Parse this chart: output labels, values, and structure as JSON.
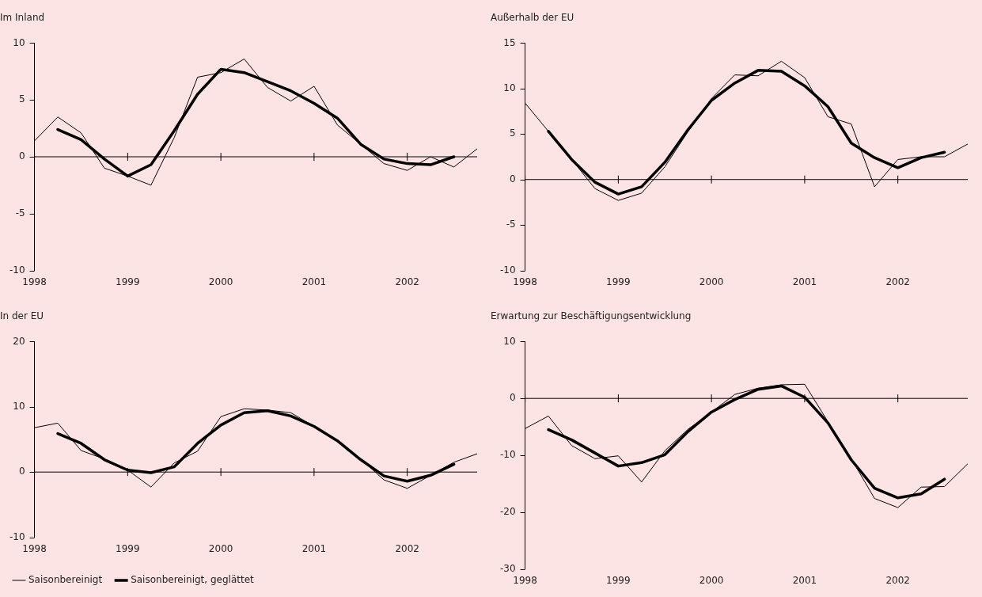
{
  "chart_data": [
    {
      "type": "line",
      "title": "Im Inland",
      "xlim": [
        1998,
        2002.75
      ],
      "xticks": [
        1998,
        1999,
        2000,
        2001,
        2002
      ],
      "ylim": [
        -10,
        10
      ],
      "yticks": [
        -10,
        -5,
        0,
        5,
        10
      ],
      "ref_lines": [
        {
          "axis": "y",
          "value": 0
        }
      ],
      "grid": false,
      "legend": false,
      "marker": "none",
      "line_style": "solid",
      "series": [
        {
          "color": "#000000",
          "x": [
            1998,
            1998.25,
            1998.5,
            1998.75,
            1999,
            1999.25,
            1999.5,
            1999.75,
            2000,
            2000.25,
            2000.5,
            2000.75,
            2001,
            2001.25,
            2001.5,
            2001.75,
            2002,
            2002.25,
            2002.5,
            2002.75
          ],
          "values": [
            1.4,
            3.5,
            2.1,
            -1.0,
            -1.7,
            -2.5,
            1.7,
            7.0,
            7.4,
            8.6,
            6.1,
            4.9,
            6.2,
            2.8,
            1.1,
            -0.6,
            -1.2,
            0.0,
            -0.9,
            0.7
          ]
        },
        {
          "color": "#000000",
          "x": [
            1998.25,
            1998.5,
            1998.75,
            1999,
            1999.25,
            1999.5,
            1999.75,
            2000,
            2000.25,
            2000.5,
            2000.75,
            2001,
            2001.25,
            2001.5,
            2001.75,
            2002,
            2002.25,
            2002.5
          ],
          "values": [
            2.4,
            1.5,
            -0.2,
            -1.7,
            -0.7,
            2.3,
            5.5,
            7.7,
            7.4,
            6.6,
            5.8,
            4.7,
            3.4,
            1.1,
            -0.2,
            -0.6,
            -0.7,
            0.0
          ]
        }
      ]
    },
    {
      "type": "line",
      "title": "Außerhalb der EU",
      "xlim": [
        1998,
        2002.75
      ],
      "xticks": [
        1998,
        1999,
        2000,
        2001,
        2002
      ],
      "ylim": [
        -10,
        15
      ],
      "yticks": [
        -10,
        -5,
        0,
        5,
        10,
        15
      ],
      "ref_lines": [
        {
          "axis": "y",
          "value": 0
        }
      ],
      "grid": false,
      "legend": false,
      "marker": "none",
      "line_style": "solid",
      "series": [
        {
          "color": "#000000",
          "x": [
            1998,
            1998.25,
            1998.5,
            1998.75,
            1999,
            1999.25,
            1999.5,
            1999.75,
            2000,
            2000.25,
            2000.5,
            2000.75,
            2001,
            2001.25,
            2001.5,
            2001.75,
            2002,
            2002.25,
            2002.5,
            2002.75
          ],
          "values": [
            8.4,
            5.3,
            2.2,
            -1.0,
            -2.3,
            -1.5,
            1.4,
            5.3,
            8.9,
            11.5,
            11.4,
            13.0,
            11.2,
            6.9,
            6.1,
            -0.8,
            2.2,
            2.5,
            2.5,
            3.9
          ]
        },
        {
          "color": "#000000",
          "x": [
            1998.25,
            1998.5,
            1998.75,
            1999,
            1999.25,
            1999.5,
            1999.75,
            2000,
            2000.25,
            2000.5,
            2000.75,
            2001,
            2001.25,
            2001.5,
            2001.75,
            2002,
            2002.25,
            2002.5
          ],
          "values": [
            5.3,
            2.2,
            -0.3,
            -1.6,
            -0.8,
            1.9,
            5.5,
            8.7,
            10.6,
            12.0,
            11.9,
            10.3,
            8.0,
            4.0,
            2.4,
            1.3,
            2.4,
            3.0
          ]
        }
      ]
    },
    {
      "type": "line",
      "title": "In der EU",
      "xlim": [
        1998,
        2002.75
      ],
      "xticks": [
        1998,
        1999,
        2000,
        2001,
        2002
      ],
      "ylim": [
        -10,
        20
      ],
      "yticks": [
        -10,
        0,
        10,
        20
      ],
      "ref_lines": [
        {
          "axis": "y",
          "value": 0
        }
      ],
      "grid": false,
      "legend": "bottom",
      "marker": "none",
      "line_style": "solid",
      "series": [
        {
          "name": "Saisonbereinigt",
          "color": "#000000",
          "x": [
            1998,
            1998.25,
            1998.5,
            1998.75,
            1999,
            1999.25,
            1999.5,
            1999.75,
            2000,
            2000.25,
            2000.5,
            2000.75,
            2001,
            2001.25,
            2001.5,
            2001.75,
            2002,
            2002.25,
            2002.5,
            2002.75
          ],
          "values": [
            6.8,
            7.5,
            3.3,
            2.0,
            0.3,
            -2.3,
            1.4,
            3.2,
            8.5,
            9.7,
            9.5,
            9.1,
            7.0,
            4.8,
            2.0,
            -1.2,
            -2.5,
            -0.5,
            1.5,
            2.8
          ]
        },
        {
          "name": "Saisonbereinigt, geglättet",
          "color": "#000000",
          "x": [
            1998.25,
            1998.5,
            1998.75,
            1999,
            1999.25,
            1999.5,
            1999.75,
            2000,
            2000.25,
            2000.5,
            2000.75,
            2001,
            2001.25,
            2001.5,
            2001.75,
            2002,
            2002.25,
            2002.5
          ],
          "values": [
            5.9,
            4.4,
            1.9,
            0.3,
            -0.1,
            0.8,
            4.4,
            7.2,
            9.1,
            9.4,
            8.6,
            7.0,
            4.8,
            1.9,
            -0.6,
            -1.4,
            -0.5,
            1.2
          ]
        }
      ]
    },
    {
      "type": "line",
      "title": "Erwartung zur Beschäftigungsentwicklung",
      "xlim": [
        1998,
        2002.75
      ],
      "xticks": [
        1998,
        1999,
        2000,
        2001,
        2002
      ],
      "ylim": [
        -30,
        10
      ],
      "yticks": [
        -30,
        -20,
        -10,
        0,
        10
      ],
      "ref_lines": [
        {
          "axis": "y",
          "value": 0
        }
      ],
      "grid": false,
      "legend": false,
      "marker": "none",
      "line_style": "solid",
      "series": [
        {
          "color": "#000000",
          "x": [
            1998,
            1998.25,
            1998.5,
            1998.75,
            1999,
            1999.25,
            1999.5,
            1999.75,
            2000,
            2000.25,
            2000.5,
            2000.75,
            2001,
            2001.25,
            2001.5,
            2001.75,
            2002,
            2002.25,
            2002.5,
            2002.75
          ],
          "values": [
            -5.3,
            -3.1,
            -8.3,
            -10.6,
            -10.1,
            -14.7,
            -9.2,
            -5.4,
            -2.4,
            0.7,
            1.8,
            2.4,
            2.5,
            -4.1,
            -10.6,
            -17.6,
            -19.2,
            -15.6,
            -15.5,
            -11.5
          ]
        },
        {
          "color": "#000000",
          "x": [
            1998.25,
            1998.5,
            1998.75,
            1999,
            1999.25,
            1999.5,
            1999.75,
            2000,
            2000.25,
            2000.5,
            2000.75,
            2001,
            2001.25,
            2001.5,
            2001.75,
            2002,
            2002.25,
            2002.5
          ],
          "values": [
            -5.5,
            -7.3,
            -9.6,
            -11.9,
            -11.3,
            -9.9,
            -5.8,
            -2.4,
            -0.2,
            1.6,
            2.2,
            0.2,
            -4.3,
            -10.8,
            -15.8,
            -17.5,
            -16.8,
            -14.2
          ]
        }
      ]
    }
  ]
}
